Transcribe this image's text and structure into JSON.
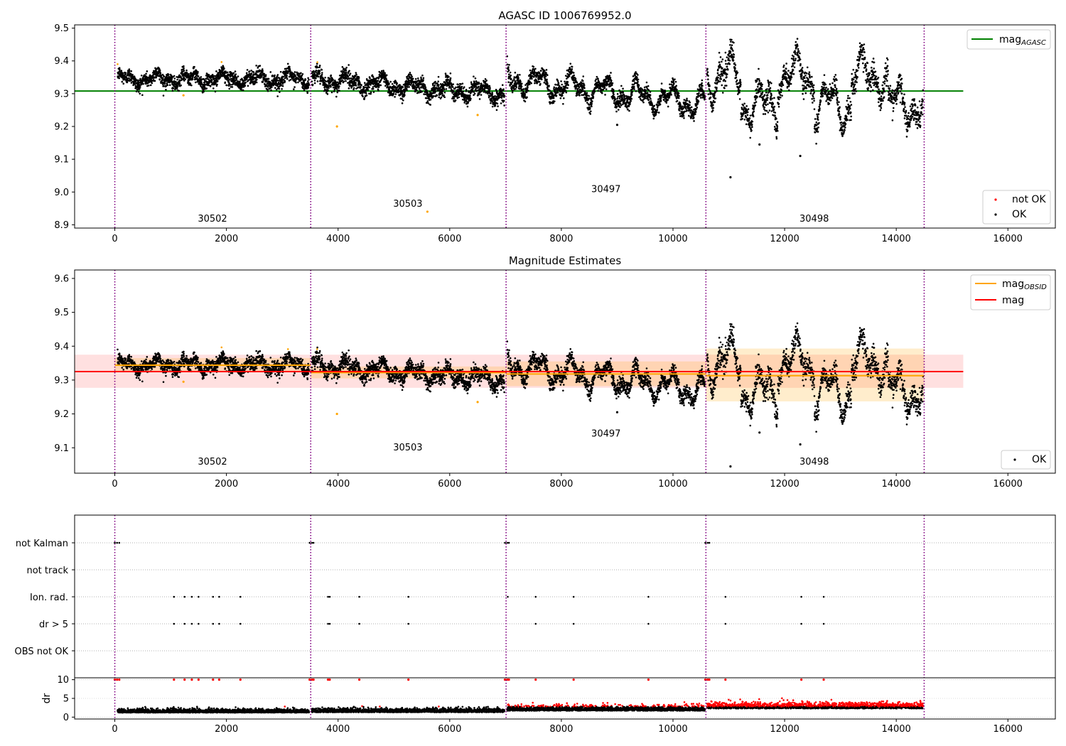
{
  "chart_data": [
    {
      "type": "scatter",
      "title": "AGASC ID 1006769952.0",
      "xlim": [
        -720,
        16850
      ],
      "ylim": [
        8.89,
        9.51
      ],
      "xticks": [
        0,
        2000,
        4000,
        6000,
        8000,
        10000,
        12000,
        14000,
        16000
      ],
      "yticks": [
        8.9,
        9.0,
        9.1,
        9.2,
        9.3,
        9.4,
        9.5
      ],
      "obsid_boundaries": [
        0,
        3510,
        7010,
        10590,
        14500
      ],
      "obsid_labels": [
        {
          "label": "30502",
          "x": 1750,
          "y": 8.91
        },
        {
          "label": "30503",
          "x": 5250,
          "y": 8.955
        },
        {
          "label": "30497",
          "x": 8800,
          "y": 9.0
        },
        {
          "label": "30498",
          "x": 12530,
          "y": 8.91
        }
      ],
      "reference_line": {
        "name": "mag_AGASC",
        "y": 9.308,
        "x_range": [
          -720,
          15200
        ],
        "color": "#008000"
      },
      "legends": [
        {
          "position": "top-right",
          "entries": [
            {
              "label": "mag",
              "subscript": "AGASC",
              "kind": "line",
              "color": "#008000"
            }
          ]
        },
        {
          "position": "bottom-right",
          "entries": [
            {
              "label": "not OK",
              "kind": "point",
              "color": "#ff0000"
            },
            {
              "label": "OK",
              "kind": "point",
              "color": "#000000"
            }
          ]
        }
      ],
      "series": [
        {
          "name": "OK",
          "color": "#000000"
        },
        {
          "name": "not OK",
          "color": "#ff0000"
        }
      ],
      "segments": [
        {
          "x": [
            50,
            3480
          ],
          "base": 9.345,
          "amp": 0.022,
          "noise": 0.018
        },
        {
          "x": [
            3530,
            6980
          ],
          "base": [
            9.345,
            9.3
          ],
          "amp": 0.028,
          "noise": 0.02
        },
        {
          "x": [
            7030,
            10570
          ],
          "base": [
            9.345,
            9.27
          ],
          "amp": 0.05,
          "noise": 0.02
        },
        {
          "x": [
            10610,
            14480
          ],
          "base": 9.31,
          "amp": 0.08,
          "noise": 0.03
        }
      ],
      "outliers": [
        {
          "x": 5600,
          "y": 8.94,
          "color": "#ffa500"
        },
        {
          "x": 3980,
          "y": 9.2,
          "color": "#ffa500"
        },
        {
          "x": 11030,
          "y": 9.045,
          "color": "#000000"
        },
        {
          "x": 12280,
          "y": 9.11,
          "color": "#000000"
        },
        {
          "x": 9000,
          "y": 9.205,
          "color": "#000000"
        },
        {
          "x": 11550,
          "y": 9.145,
          "color": "#000000"
        },
        {
          "x": 1230,
          "y": 9.295,
          "color": "#ffa500"
        },
        {
          "x": 6500,
          "y": 9.235,
          "color": "#ffa500"
        }
      ]
    },
    {
      "type": "scatter",
      "title": "Magnitude Estimates",
      "xlim": [
        -720,
        16850
      ],
      "ylim": [
        9.025,
        9.625
      ],
      "xticks": [
        0,
        2000,
        4000,
        6000,
        8000,
        10000,
        12000,
        14000,
        16000
      ],
      "yticks": [
        9.1,
        9.2,
        9.3,
        9.4,
        9.5,
        9.6
      ],
      "obsid_boundaries": [
        0,
        3510,
        7010,
        10590,
        14500
      ],
      "obsid_labels": [
        {
          "label": "30502",
          "x": 1750,
          "y": 9.05
        },
        {
          "label": "30503",
          "x": 5250,
          "y": 9.092
        },
        {
          "label": "30497",
          "x": 8800,
          "y": 9.133
        },
        {
          "label": "30498",
          "x": 12530,
          "y": 9.05
        }
      ],
      "mag": {
        "name": "mag",
        "y": 9.325,
        "band": [
          9.277,
          9.375
        ],
        "x_range": [
          -720,
          15200
        ],
        "color": "#ff0000"
      },
      "mag_obsid": [
        {
          "x": [
            0,
            3510
          ],
          "y": 9.344,
          "band": [
            9.325,
            9.365
          ]
        },
        {
          "x": [
            3510,
            7010
          ],
          "y": 9.322,
          "band": [
            9.305,
            9.34
          ]
        },
        {
          "x": [
            7010,
            10590
          ],
          "y": 9.318,
          "band": [
            9.282,
            9.355
          ]
        },
        {
          "x": [
            10590,
            14500
          ],
          "y": 9.313,
          "band": [
            9.237,
            9.393
          ]
        }
      ],
      "legends": [
        {
          "position": "top-right",
          "entries": [
            {
              "label": "mag",
              "subscript": "OBSID",
              "kind": "line",
              "color": "#ffa500"
            },
            {
              "label": "mag",
              "kind": "line",
              "color": "#ff0000"
            }
          ]
        },
        {
          "position": "bottom-right",
          "entries": [
            {
              "label": "OK",
              "kind": "point",
              "color": "#000000"
            }
          ]
        }
      ],
      "series": [
        {
          "name": "OK",
          "color": "#000000"
        }
      ]
    },
    {
      "type": "scatter",
      "title": "",
      "xlim": [
        -720,
        16850
      ],
      "flag_rows": [
        "not Kalman",
        "not track",
        "Ion. rad.",
        "dr > 5",
        "OBS not OK"
      ],
      "flag_events": {
        "not Kalman": [
          0,
          40,
          80,
          3490,
          3530,
          3560,
          6990,
          7030,
          7060,
          10580,
          10620,
          10650
        ],
        "not track": [],
        "Ion. rad.": [
          1060,
          1250,
          1380,
          1500,
          1760,
          1870,
          2250,
          3820,
          3850,
          4380,
          5260,
          7040,
          7540,
          8220,
          9560,
          10940,
          12300,
          12700
        ],
        "dr > 5": [
          1060,
          1250,
          1380,
          1500,
          1760,
          1870,
          2250,
          3820,
          3850,
          4380,
          5260,
          7540,
          8220,
          9560,
          10940,
          12300,
          12700
        ],
        "OBS not OK": []
      },
      "dr": {
        "ylabel": "dr",
        "ylim": [
          -0.5,
          10.5
        ],
        "yticks": [
          0,
          5,
          10
        ],
        "events": [
          0,
          40,
          80,
          3490,
          3530,
          3560,
          6990,
          7030,
          7060,
          10580,
          10620,
          10650,
          1060,
          1250,
          1380,
          1500,
          1760,
          1870,
          2250,
          3820,
          3850,
          4380,
          5260,
          7540,
          8220,
          9560,
          10940,
          12300,
          12700
        ]
      }
    }
  ]
}
